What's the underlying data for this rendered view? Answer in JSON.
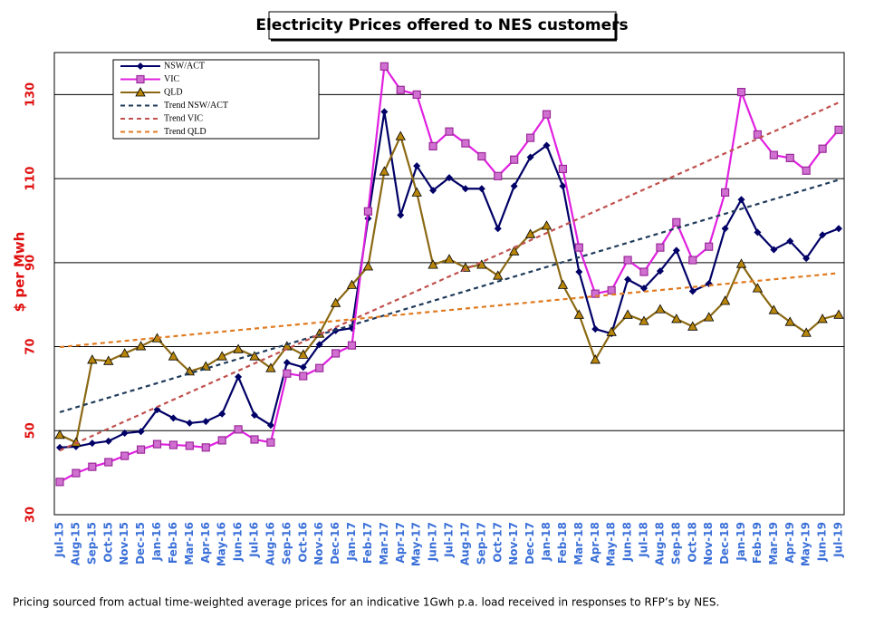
{
  "chart_data": {
    "type": "line",
    "title": "Electricity Prices offered to NES customers",
    "y_label": "$ per Mwh",
    "note": "Pricing sourced from actual time-weighted average prices for an indicative 1Gwh p.a. load received in responses to RFP’s by NES.",
    "categories": [
      "Jul-15",
      "Aug-15",
      "Sep-15",
      "Oct-15",
      "Nov-15",
      "Dec-15",
      "Jan-16",
      "Feb-16",
      "Mar-16",
      "Apr-16",
      "May-16",
      "Jun-16",
      "Jul-16",
      "Aug-16",
      "Sep-16",
      "Oct-16",
      "Nov-16",
      "Dec-16",
      "Jan-17",
      "Feb-17",
      "Mar-17",
      "Apr-17",
      "May-17",
      "Jun-17",
      "Jul-17",
      "Aug-17",
      "Sep-17",
      "Oct-17",
      "Nov-17",
      "Dec-17",
      "Jan-18",
      "Feb-18",
      "Mar-18",
      "Apr-18",
      "May-18",
      "Jun-18",
      "Jul-18",
      "Aug-18",
      "Sep-18",
      "Oct-18",
      "Nov-18",
      "Dec-18",
      "Jan-19",
      "Feb-19",
      "Mar-19",
      "Apr-19",
      "May-19",
      "Jun-19",
      "Jul-19"
    ],
    "ylim": [
      30,
      140
    ],
    "yticks": [
      30,
      50,
      70,
      90,
      110,
      130
    ],
    "grid": true,
    "series": [
      {
        "name": "NSW/ACT",
        "color": "#000066",
        "marker": "diamond",
        "values": [
          46,
          46.2,
          47,
          47.5,
          49.4,
          49.8,
          55,
          53,
          51.8,
          52.2,
          54,
          62.8,
          53.7,
          51.3,
          66.2,
          65.1,
          70.5,
          73.8,
          74.4,
          100.5,
          125.9,
          101.3,
          113,
          107.2,
          110.2,
          107.6,
          107.6,
          98.1,
          108.2,
          115.1,
          117.9,
          108.2,
          87.8,
          74.2,
          73.1,
          86,
          83.9,
          88,
          92.9,
          83.2,
          85,
          98.1,
          105,
          97.2,
          93.1,
          95.1,
          91,
          96.6,
          98.1
        ]
      },
      {
        "name": "VIC",
        "color": "#e020e0",
        "marker": "square",
        "values": [
          37.8,
          39.9,
          41.4,
          42.5,
          44,
          45.5,
          46.8,
          46.6,
          46.4,
          46,
          47.7,
          50.3,
          47.9,
          47.2,
          63.6,
          63,
          64.9,
          68.4,
          70.3,
          102.2,
          136.7,
          131.1,
          130,
          117.7,
          121.2,
          118.4,
          115.3,
          110.6,
          114.5,
          119.7,
          125.3,
          112.3,
          93.6,
          82.6,
          83.4,
          90.6,
          87.8,
          93.6,
          99.6,
          90.6,
          93.8,
          106.7,
          130.6,
          120.5,
          115.6,
          114.9,
          111.9,
          117.1,
          121.6
        ]
      },
      {
        "name": "QLD",
        "color": "#8b6914",
        "marker": "triangle",
        "values": [
          49,
          47.2,
          66.9,
          66.6,
          68.4,
          70.1,
          72,
          67.7,
          64.1,
          65.3,
          67.7,
          69.4,
          67.7,
          64.9,
          70.1,
          68.1,
          73.1,
          80.4,
          84.7,
          89.1,
          111.7,
          120.1,
          106.7,
          89.5,
          90.8,
          88.8,
          89.5,
          86.9,
          92.7,
          96.8,
          98.8,
          84.7,
          77.6,
          66.9,
          73.5,
          77.6,
          76.1,
          78.9,
          76.6,
          74.8,
          77,
          80.9,
          89.7,
          83.9,
          78.7,
          75.9,
          73.3,
          76.6,
          77.6
        ]
      },
      {
        "name": "Trend NSW/ACT",
        "color": "#1f3b5a",
        "dashed": true,
        "x": [
          "Jul-15",
          "Jul-19"
        ],
        "values": [
          54.4,
          109.7
        ]
      },
      {
        "name": "Trend VIC",
        "color": "#c0504d",
        "dashed": true,
        "x": [
          "Jul-15",
          "Jul-19"
        ],
        "values": [
          45.3,
          128.1
        ]
      },
      {
        "name": "Trend QLD",
        "color": "#e07b20",
        "dashed": true,
        "x": [
          "Jul-15",
          "Jul-19"
        ],
        "values": [
          69.9,
          87.5
        ]
      }
    ]
  }
}
